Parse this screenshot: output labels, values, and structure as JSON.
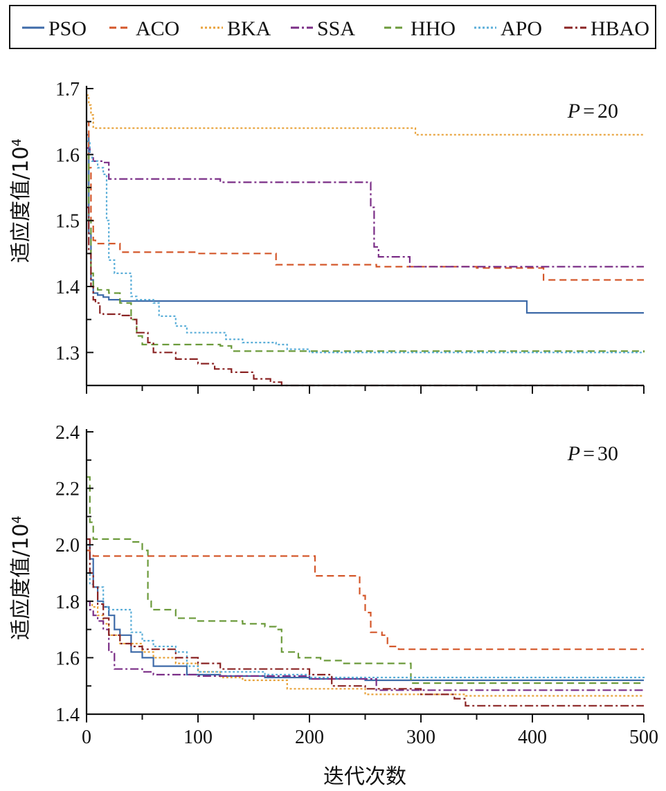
{
  "legend": {
    "entries": [
      "PSO",
      "ACO",
      "BKA",
      "SSA",
      "HHO",
      "APO",
      "HBAO"
    ]
  },
  "series_style": {
    "PSO": {
      "color": "#3d6aa8",
      "dash": ""
    },
    "ACO": {
      "color": "#d4572a",
      "dash": "10,6"
    },
    "BKA": {
      "color": "#e8a23a",
      "dash": "3,3"
    },
    "SSA": {
      "color": "#7a2d86",
      "dash": "12,4,3,4"
    },
    "HHO": {
      "color": "#6b9a3a",
      "dash": "10,6"
    },
    "APO": {
      "color": "#5aaed8",
      "dash": "3,3"
    },
    "HBAO": {
      "color": "#8a2323",
      "dash": "12,4,3,4"
    }
  },
  "xlabel": "迭代次数",
  "chart_data": [
    {
      "type": "line",
      "annotation_prefix": "P",
      "annotation_value": "20",
      "ylabel": "适应度值/10",
      "ylabel_sup": "4",
      "xlim": [
        0,
        500
      ],
      "ylim": [
        1.25,
        1.7
      ],
      "yticks": [
        "1.3",
        "1.4",
        "1.5",
        "1.6",
        "1.7"
      ],
      "ytick_values": [
        1.3,
        1.4,
        1.5,
        1.6,
        1.7
      ],
      "grid": false,
      "legend_position": "top",
      "series": [
        {
          "name": "PSO",
          "x": [
            0,
            2,
            4,
            6,
            10,
            15,
            20,
            30,
            380,
            395,
            500
          ],
          "y": [
            1.63,
            1.48,
            1.41,
            1.39,
            1.387,
            1.384,
            1.38,
            1.378,
            1.378,
            1.36,
            1.36
          ]
        },
        {
          "name": "ACO",
          "x": [
            0,
            2,
            4,
            6,
            8,
            15,
            30,
            60,
            100,
            165,
            170,
            190,
            260,
            290,
            350,
            400,
            410,
            500
          ],
          "y": [
            1.65,
            1.58,
            1.5,
            1.47,
            1.465,
            1.465,
            1.452,
            1.452,
            1.45,
            1.45,
            1.433,
            1.433,
            1.43,
            1.43,
            1.428,
            1.428,
            1.41,
            1.41
          ]
        },
        {
          "name": "BKA",
          "x": [
            0,
            2,
            4,
            6,
            290,
            295,
            500
          ],
          "y": [
            1.69,
            1.675,
            1.66,
            1.64,
            1.64,
            1.63,
            1.63
          ]
        },
        {
          "name": "SSA",
          "x": [
            0,
            3,
            6,
            15,
            20,
            100,
            120,
            250,
            255,
            258,
            262,
            280,
            290,
            500
          ],
          "y": [
            1.61,
            1.6,
            1.59,
            1.588,
            1.563,
            1.563,
            1.558,
            1.558,
            1.52,
            1.46,
            1.445,
            1.445,
            1.43,
            1.43
          ]
        },
        {
          "name": "HHO",
          "x": [
            0,
            2,
            4,
            6,
            10,
            20,
            30,
            40,
            45,
            50,
            60,
            120,
            130,
            500
          ],
          "y": [
            1.6,
            1.5,
            1.42,
            1.4,
            1.395,
            1.39,
            1.375,
            1.35,
            1.325,
            1.312,
            1.312,
            1.31,
            1.302,
            1.3
          ]
        },
        {
          "name": "APO",
          "x": [
            0,
            3,
            5,
            10,
            15,
            18,
            20,
            25,
            40,
            45,
            60,
            65,
            75,
            80,
            90,
            100,
            125,
            140,
            170,
            180,
            200,
            500
          ],
          "y": [
            1.62,
            1.6,
            1.59,
            1.58,
            1.57,
            1.5,
            1.44,
            1.42,
            1.385,
            1.38,
            1.375,
            1.355,
            1.355,
            1.34,
            1.33,
            1.33,
            1.32,
            1.315,
            1.312,
            1.305,
            1.3,
            1.3
          ]
        },
        {
          "name": "HBAO",
          "x": [
            0,
            2,
            4,
            6,
            8,
            12,
            15,
            30,
            40,
            45,
            55,
            60,
            80,
            100,
            115,
            130,
            150,
            165,
            175,
            500
          ],
          "y": [
            1.52,
            1.45,
            1.4,
            1.38,
            1.375,
            1.36,
            1.358,
            1.356,
            1.35,
            1.33,
            1.315,
            1.3,
            1.29,
            1.283,
            1.275,
            1.27,
            1.26,
            1.255,
            1.25,
            1.25
          ]
        }
      ]
    },
    {
      "type": "line",
      "annotation_prefix": "P",
      "annotation_value": "30",
      "ylabel": "适应度值/10",
      "ylabel_sup": "4",
      "xlim": [
        0,
        500
      ],
      "ylim": [
        1.4,
        2.4
      ],
      "yticks": [
        "1.4",
        "1.6",
        "1.8",
        "2.0",
        "2.2",
        "2.4"
      ],
      "ytick_values": [
        1.4,
        1.6,
        1.8,
        2.0,
        2.2,
        2.4
      ],
      "xticks": [
        "0",
        "100",
        "200",
        "300",
        "400",
        "500"
      ],
      "xtick_values": [
        0,
        100,
        200,
        300,
        400,
        500
      ],
      "grid": false,
      "series": [
        {
          "name": "PSO",
          "x": [
            0,
            3,
            6,
            10,
            15,
            20,
            25,
            30,
            35,
            40,
            50,
            60,
            70,
            90,
            120,
            160,
            200,
            250,
            300,
            400,
            500
          ],
          "y": [
            2.0,
            1.95,
            1.85,
            1.8,
            1.78,
            1.75,
            1.7,
            1.68,
            1.68,
            1.62,
            1.6,
            1.57,
            1.57,
            1.54,
            1.535,
            1.53,
            1.525,
            1.52,
            1.52,
            1.52,
            1.52
          ]
        },
        {
          "name": "ACO",
          "x": [
            0,
            3,
            6,
            200,
            205,
            215,
            240,
            245,
            250,
            255,
            260,
            265,
            270,
            280,
            500
          ],
          "y": [
            1.98,
            1.97,
            1.96,
            1.96,
            1.89,
            1.89,
            1.89,
            1.82,
            1.76,
            1.69,
            1.69,
            1.68,
            1.64,
            1.63,
            1.63
          ]
        },
        {
          "name": "BKA",
          "x": [
            0,
            5,
            10,
            15,
            20,
            30,
            50,
            60,
            80,
            100,
            120,
            140,
            180,
            220,
            250,
            280,
            340,
            500
          ],
          "y": [
            1.8,
            1.78,
            1.75,
            1.72,
            1.68,
            1.65,
            1.62,
            1.6,
            1.58,
            1.55,
            1.53,
            1.52,
            1.49,
            1.49,
            1.47,
            1.47,
            1.465,
            1.465
          ]
        },
        {
          "name": "SSA",
          "x": [
            0,
            3,
            6,
            10,
            15,
            20,
            25,
            30,
            50,
            60,
            100,
            200,
            260,
            500
          ],
          "y": [
            1.8,
            1.77,
            1.75,
            1.73,
            1.7,
            1.62,
            1.56,
            1.56,
            1.55,
            1.54,
            1.535,
            1.525,
            1.485,
            1.485
          ]
        },
        {
          "name": "HHO",
          "x": [
            0,
            3,
            6,
            10,
            20,
            40,
            50,
            55,
            58,
            65,
            80,
            100,
            120,
            140,
            160,
            170,
            175,
            180,
            190,
            200,
            210,
            230,
            290,
            291,
            500
          ],
          "y": [
            2.24,
            2.08,
            2.02,
            2.02,
            2.02,
            2.01,
            1.98,
            1.8,
            1.77,
            1.77,
            1.74,
            1.73,
            1.73,
            1.72,
            1.71,
            1.7,
            1.62,
            1.62,
            1.6,
            1.6,
            1.59,
            1.58,
            1.58,
            1.51,
            1.51
          ]
        },
        {
          "name": "APO",
          "x": [
            0,
            3,
            6,
            10,
            15,
            20,
            25,
            40,
            50,
            60,
            80,
            90,
            100,
            160,
            200,
            300,
            500
          ],
          "y": [
            1.9,
            1.86,
            1.85,
            1.85,
            1.78,
            1.77,
            1.77,
            1.69,
            1.66,
            1.64,
            1.62,
            1.57,
            1.55,
            1.54,
            1.53,
            1.53,
            1.525
          ]
        },
        {
          "name": "HBAO",
          "x": [
            0,
            3,
            6,
            10,
            15,
            20,
            30,
            40,
            50,
            60,
            80,
            100,
            120,
            150,
            190,
            200,
            220,
            250,
            300,
            330,
            340,
            500
          ],
          "y": [
            2.02,
            1.9,
            1.85,
            1.79,
            1.74,
            1.68,
            1.65,
            1.64,
            1.63,
            1.63,
            1.6,
            1.58,
            1.56,
            1.56,
            1.56,
            1.54,
            1.5,
            1.49,
            1.47,
            1.455,
            1.43,
            1.43
          ]
        }
      ]
    }
  ]
}
